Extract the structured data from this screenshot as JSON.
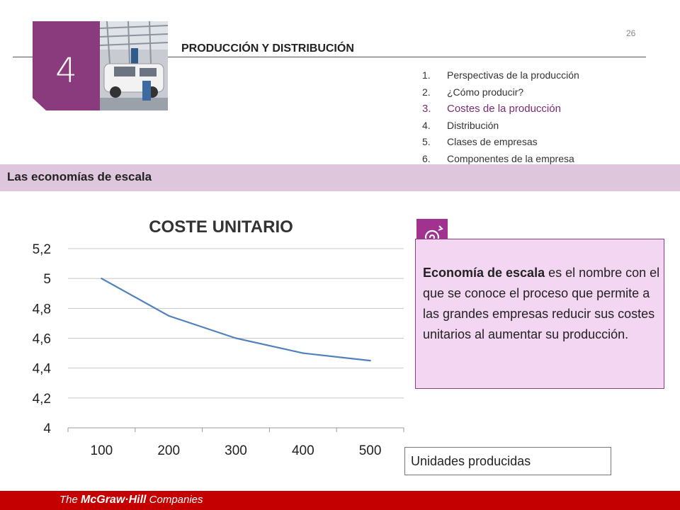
{
  "page": {
    "number": "26"
  },
  "chapter": {
    "number": "4",
    "title": "PRODUCCIÓN Y DISTRIBUCIÓN"
  },
  "toc": [
    {
      "num": "1.",
      "label": "Perspectivas de la producción",
      "active": false
    },
    {
      "num": "2.",
      "label": "¿Cómo producir?",
      "active": false
    },
    {
      "num": "3.",
      "label": "Costes de la producción",
      "active": true
    },
    {
      "num": "4.",
      "label": "Distribución",
      "active": false
    },
    {
      "num": "5.",
      "label": "Clases de empresas",
      "active": false
    },
    {
      "num": "6.",
      "label": "Componentes de la empresa",
      "active": false
    }
  ],
  "section": {
    "title": "Las economías de escala"
  },
  "note": {
    "term": "Economía de escala",
    "body": " es el nombre con el que se conoce el proceso que permite a las grandes empresas reducir sus costes unitarios al aumentar su producción.",
    "icon": "spiral-icon"
  },
  "units_box": {
    "label": "Unidades producidas"
  },
  "footer": {
    "logo_prefix": "The ",
    "logo_main": "McGraw·Hill",
    "logo_suffix": " Companies"
  },
  "colors": {
    "accent": "#8a3b7e",
    "band": "#dec6dc",
    "note_bg": "#f3d6f1",
    "footer": "#c40000",
    "line": "#4f81bd"
  },
  "chart_data": {
    "type": "line",
    "title": "COSTE UNITARIO",
    "categories": [
      "100",
      "200",
      "300",
      "400",
      "500"
    ],
    "series": [
      {
        "values": [
          5.0,
          4.75,
          4.6,
          4.5,
          4.45
        ]
      }
    ],
    "ylim": [
      4,
      5.2
    ],
    "yticks": [
      4,
      4.2,
      4.4,
      4.6,
      4.8,
      5,
      5.2
    ],
    "ytick_labels": [
      "4",
      "4,2",
      "4,4",
      "4,6",
      "4,8",
      "5",
      "5,2"
    ],
    "grid": true,
    "legend": "none"
  }
}
